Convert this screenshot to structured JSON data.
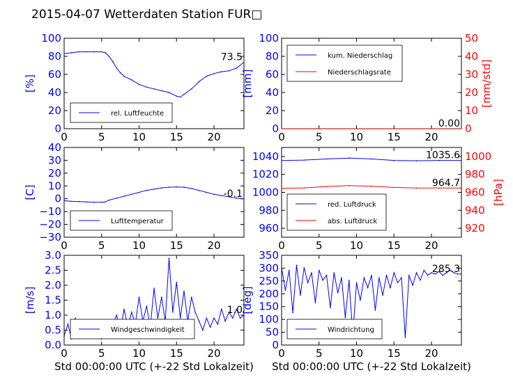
{
  "figure_title": "2015-04-07 Wetterdaten Station FUR□",
  "xlabel": "Std 00:00:00 UTC (+-22 Std Lokalzeit)",
  "x_ticks": [
    "0",
    "5",
    "10",
    "15",
    "20"
  ],
  "chart_data": [
    {
      "type": "line",
      "title": "",
      "ylabel": "[%]",
      "ylim": [
        0,
        100
      ],
      "xlim": [
        0,
        24
      ],
      "yticks": [
        "0",
        "20",
        "40",
        "60",
        "80",
        "100"
      ],
      "legend": "lower-left",
      "last_value_label": "73.5",
      "series": [
        {
          "name": "rel. Luftfeuchte",
          "color": "#0000ff",
          "x": [
            0,
            1,
            2,
            3,
            4,
            5,
            5.5,
            6,
            6.5,
            7,
            7.5,
            8,
            9,
            10,
            11,
            12,
            13,
            14,
            15,
            15.5,
            16,
            17,
            18,
            19,
            20,
            21,
            22,
            23,
            24
          ],
          "y": [
            83,
            84,
            85,
            85,
            85,
            85,
            84,
            80,
            74,
            67,
            62,
            58,
            54,
            49,
            46,
            44,
            42,
            40,
            36,
            35,
            38,
            44,
            52,
            58,
            61,
            63,
            64,
            67,
            73.5
          ]
        }
      ]
    },
    {
      "type": "line",
      "title": "",
      "ylabel": "[mm]",
      "ylabel2": "[mm/std]",
      "ylim": [
        0,
        100
      ],
      "ylim2": [
        0,
        50
      ],
      "xlim": [
        0,
        24
      ],
      "yticks": [
        "0",
        "20",
        "40",
        "60",
        "80",
        "100"
      ],
      "yticks2": [
        "0",
        "10",
        "20",
        "30",
        "40",
        "50"
      ],
      "legend": "top-left",
      "last_value_label": "0.00",
      "series": [
        {
          "name": "kum. Niederschlag",
          "color": "#0000ff",
          "x": [
            0,
            24
          ],
          "y": [
            0,
            0
          ]
        },
        {
          "name": "Niederschlagsrate",
          "color": "#ff0000",
          "x": [
            0,
            24
          ],
          "y": [
            0,
            0
          ]
        }
      ]
    },
    {
      "type": "line",
      "title": "",
      "ylabel": "[C]",
      "ylim": [
        -30,
        40
      ],
      "xlim": [
        0,
        24
      ],
      "yticks": [
        "−30",
        "−20",
        "−10",
        "0",
        "10",
        "20",
        "30",
        "40"
      ],
      "legend": "lower-left",
      "last_value_label": "-0.1",
      "series": [
        {
          "name": "Lufttemperatur",
          "color": "#0000ff",
          "x": [
            0,
            1,
            2,
            3,
            4,
            5,
            5.5,
            6,
            7,
            8,
            9,
            10,
            11,
            12,
            13,
            14,
            15,
            16,
            17,
            18,
            19,
            20,
            21,
            22,
            23,
            24
          ],
          "y": [
            -1.5,
            -2,
            -2.2,
            -2.5,
            -2.7,
            -2.7,
            -2.5,
            -1,
            0.5,
            2,
            3.5,
            5,
            6.5,
            7.5,
            8.5,
            9,
            9.2,
            9,
            8,
            6.5,
            5,
            3.5,
            2.5,
            1.5,
            0.5,
            -0.1
          ]
        }
      ]
    },
    {
      "type": "line",
      "title": "",
      "ylabel": "[hPa]",
      "ylim": [
        950,
        1050
      ],
      "ylim2": [
        910,
        1010
      ],
      "xlim": [
        0,
        24
      ],
      "yticks": [
        "960",
        "980",
        "1000",
        "1020",
        "1040"
      ],
      "yticks2": [
        "920",
        "940",
        "960",
        "980",
        "1000"
      ],
      "legend": "lower-left",
      "last_value_labels": [
        "1035.6",
        "964.7"
      ],
      "series": [
        {
          "name": "red. Luftdruck",
          "color": "#0000ff",
          "x": [
            0,
            3,
            6,
            9,
            12,
            15,
            18,
            21,
            24
          ],
          "y": [
            1035.5,
            1036,
            1037.2,
            1038.2,
            1037.2,
            1035.6,
            1035.2,
            1035.6,
            1035.6
          ]
        },
        {
          "name": "abs. Luftdruck",
          "color": "#ff0000",
          "x": [
            0,
            3,
            6,
            9,
            12,
            15,
            18,
            21,
            24
          ],
          "y": [
            964.5,
            965,
            966.5,
            967.5,
            966.8,
            965.5,
            964.8,
            964.9,
            964.7
          ]
        }
      ]
    },
    {
      "type": "line",
      "title": "",
      "ylabel": "[m/s]",
      "ylim": [
        0,
        3
      ],
      "xlim": [
        0,
        24
      ],
      "yticks": [
        "0.0",
        "0.5",
        "1.0",
        "1.5",
        "2.0",
        "2.5",
        "3.0"
      ],
      "legend": "lower-left",
      "last_value_label": "1.0",
      "series": [
        {
          "name": "Windgeschwindigkeit",
          "color": "#0000ff",
          "x": [
            0,
            0.5,
            1,
            1.5,
            2,
            2.5,
            3,
            3.5,
            4,
            4.5,
            5,
            5.5,
            6,
            6.5,
            7,
            7.5,
            8,
            8.5,
            9,
            9.5,
            10,
            10.5,
            11,
            11.5,
            12,
            12.5,
            13,
            13.5,
            14,
            14.5,
            15,
            15.5,
            16,
            16.5,
            17,
            17.5,
            18,
            18.5,
            19,
            19.5,
            20,
            20.5,
            21,
            21.5,
            22,
            22.5,
            23,
            23.5,
            24
          ],
          "y": [
            0.3,
            0.7,
            0.2,
            0.9,
            0.3,
            0.6,
            0.4,
            0.8,
            0.3,
            0.5,
            0.2,
            0.6,
            0.3,
            0.7,
            1.0,
            0.5,
            1.2,
            0.6,
            1.1,
            0.7,
            1.6,
            0.8,
            1.3,
            0.6,
            1.9,
            0.9,
            1.6,
            0.8,
            2.9,
            1.1,
            2.1,
            0.9,
            1.8,
            0.8,
            1.6,
            1.1,
            0.8,
            0.5,
            0.9,
            0.6,
            0.9,
            0.7,
            1.2,
            0.8,
            1.1,
            0.9,
            1.2,
            0.9,
            1.0
          ]
        }
      ]
    },
    {
      "type": "scatter",
      "title": "",
      "ylabel": "[deg]",
      "ylim": [
        0,
        360
      ],
      "xlim": [
        0,
        24
      ],
      "yticks": [
        "0",
        "50",
        "100",
        "150",
        "200",
        "250",
        "300",
        "350"
      ],
      "legend": "lower-left",
      "last_value_label": "285.3",
      "series": [
        {
          "name": "Windrichtung",
          "color": "#0000ff",
          "x": [
            0,
            0.5,
            1,
            1.5,
            2,
            2.5,
            3,
            3.5,
            4,
            4.5,
            5,
            5.5,
            6,
            6.5,
            7,
            7.5,
            8,
            8.5,
            9,
            9.5,
            10,
            10.5,
            11,
            11.5,
            12,
            12.5,
            13,
            13.5,
            14,
            14.5,
            15,
            15.5,
            16,
            16.5,
            17,
            17.5,
            18,
            18.5,
            19,
            19.5,
            20,
            20.5,
            21,
            21.5,
            22,
            22.5,
            23,
            23.5,
            24
          ],
          "y": [
            310,
            220,
            300,
            130,
            320,
            200,
            310,
            250,
            290,
            170,
            300,
            260,
            280,
            150,
            290,
            210,
            270,
            110,
            260,
            40,
            250,
            180,
            270,
            230,
            280,
            140,
            270,
            200,
            280,
            230,
            290,
            250,
            270,
            30,
            280,
            240,
            290,
            260,
            300,
            280,
            290,
            285,
            295,
            280,
            290,
            300,
            290,
            285,
            285.3
          ]
        }
      ]
    }
  ]
}
